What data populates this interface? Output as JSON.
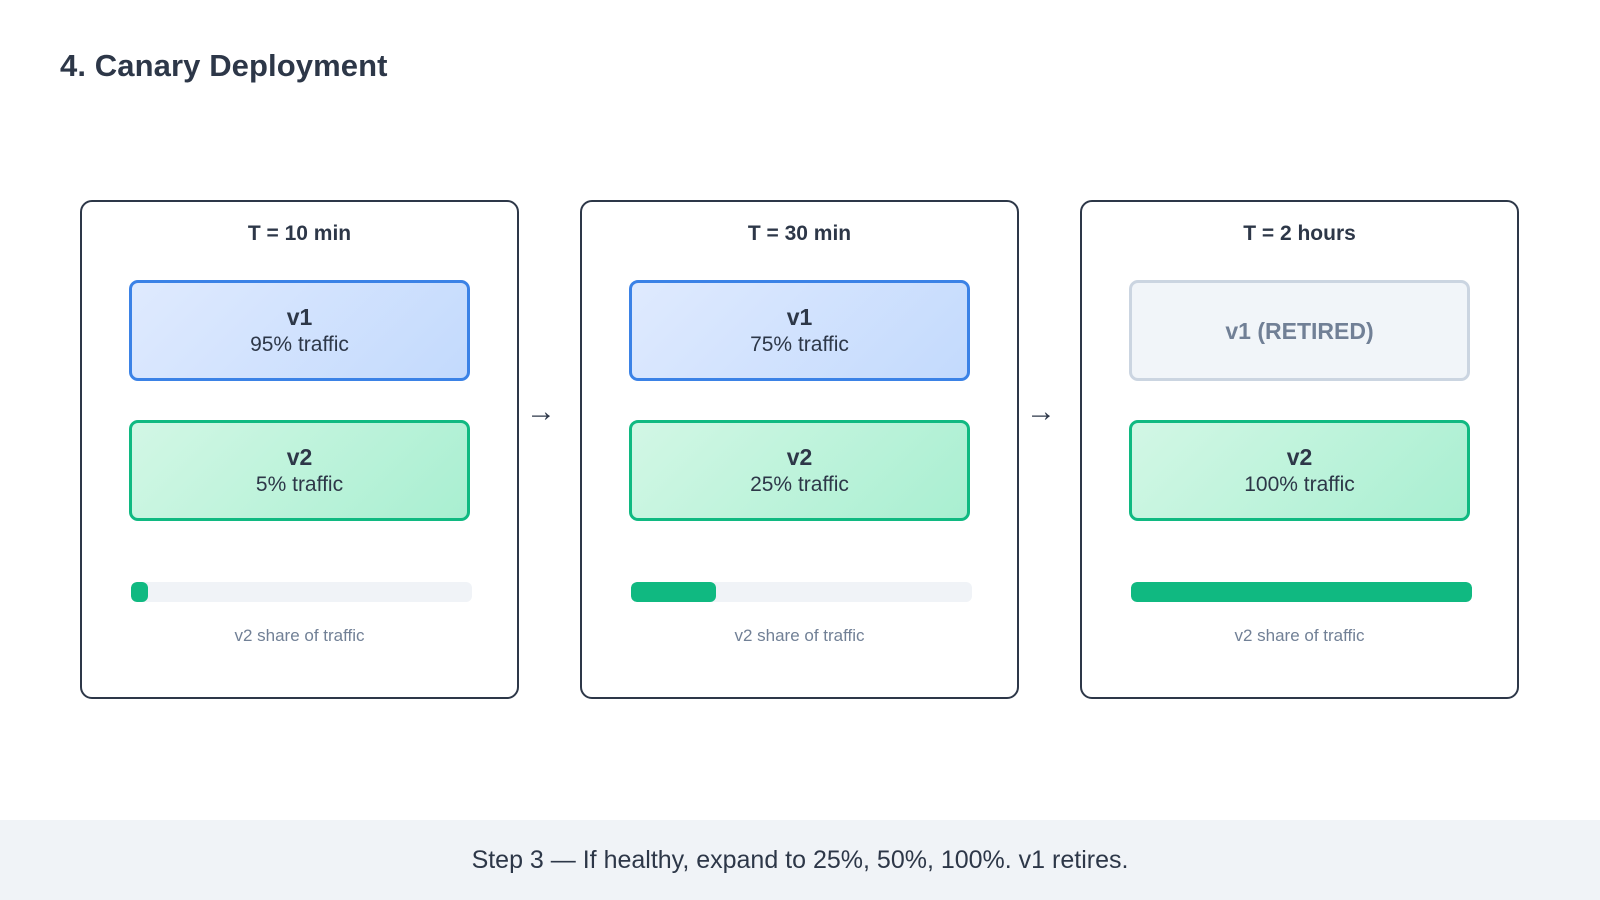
{
  "title": "4. Canary Deployment",
  "stages": [
    {
      "time": "T = 10 min",
      "v1": {
        "name": "v1",
        "traffic": "95% traffic"
      },
      "v2": {
        "name": "v2",
        "traffic": "5% traffic"
      },
      "v2_share_percent": 5,
      "bar_caption": "v2 share of traffic"
    },
    {
      "time": "T = 30 min",
      "v1": {
        "name": "v1",
        "traffic": "75% traffic"
      },
      "v2": {
        "name": "v2",
        "traffic": "25% traffic"
      },
      "v2_share_percent": 25,
      "bar_caption": "v2 share of traffic"
    },
    {
      "time": "T = 2 hours",
      "v1": {
        "name": "v1 (RETIRED)"
      },
      "v2": {
        "name": "v2",
        "traffic": "100% traffic"
      },
      "v2_share_percent": 100,
      "bar_caption": "v2 share of traffic"
    }
  ],
  "arrows": [
    "→",
    "→"
  ],
  "footer": {
    "text": "Step 3 — If healthy, expand to 25%, 50%, 100%. v1 retires."
  },
  "colors": {
    "v1_border": "#3b82e6",
    "v2_border": "#10b981",
    "retired_border": "#cbd5e1",
    "progress_fill": "#10b981",
    "text_dark": "#2d3748",
    "text_muted": "#718096",
    "footer_background": "#f0f3f7"
  }
}
